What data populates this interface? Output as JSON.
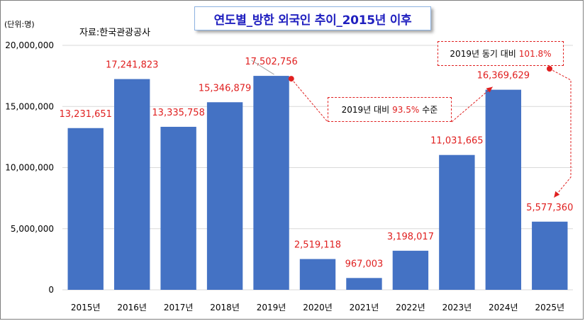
{
  "title": "연도별_방한 외국인 추이_2015년 이후",
  "unit_label": "(단위:명)",
  "source_label": "자료:한국관광공사",
  "chart_data": {
    "type": "bar",
    "title": "연도별_방한 외국인 추이_2015년 이후",
    "categories": [
      "2015년",
      "2016년",
      "2017년",
      "2018년",
      "2019년",
      "2020년",
      "2021년",
      "2022년",
      "2023년",
      "2024년",
      "2025년"
    ],
    "values": [
      13231651,
      17241823,
      13335758,
      15346879,
      17502756,
      2519118,
      967003,
      3198017,
      11031665,
      16369629,
      5577360
    ],
    "value_labels": [
      "13,231,651",
      "17,241,823",
      "13,335,758",
      "15,346,879",
      "17,502,756",
      "2,519,118",
      "967,003",
      "3,198,017",
      "11,031,665",
      "16,369,629",
      "5,577,360"
    ],
    "ylim": [
      0,
      20000000
    ],
    "yticks": [
      0,
      5000000,
      10000000,
      15000000,
      20000000
    ],
    "ytick_labels": [
      "0",
      "5,000,000",
      "10,000,000",
      "15,000,000",
      "20,000,000"
    ],
    "grid": true,
    "colors": {
      "bar": "#4472c4",
      "label": "#e02020",
      "grid": "#d9d9d9",
      "annotation": "#e02020"
    },
    "annotations": [
      {
        "prefix": "2019년 대비",
        "percent": "93.5%",
        "suffix": "수준"
      },
      {
        "prefix": "2019년 동기 대비",
        "percent": "101.8%",
        "suffix": ""
      }
    ]
  }
}
